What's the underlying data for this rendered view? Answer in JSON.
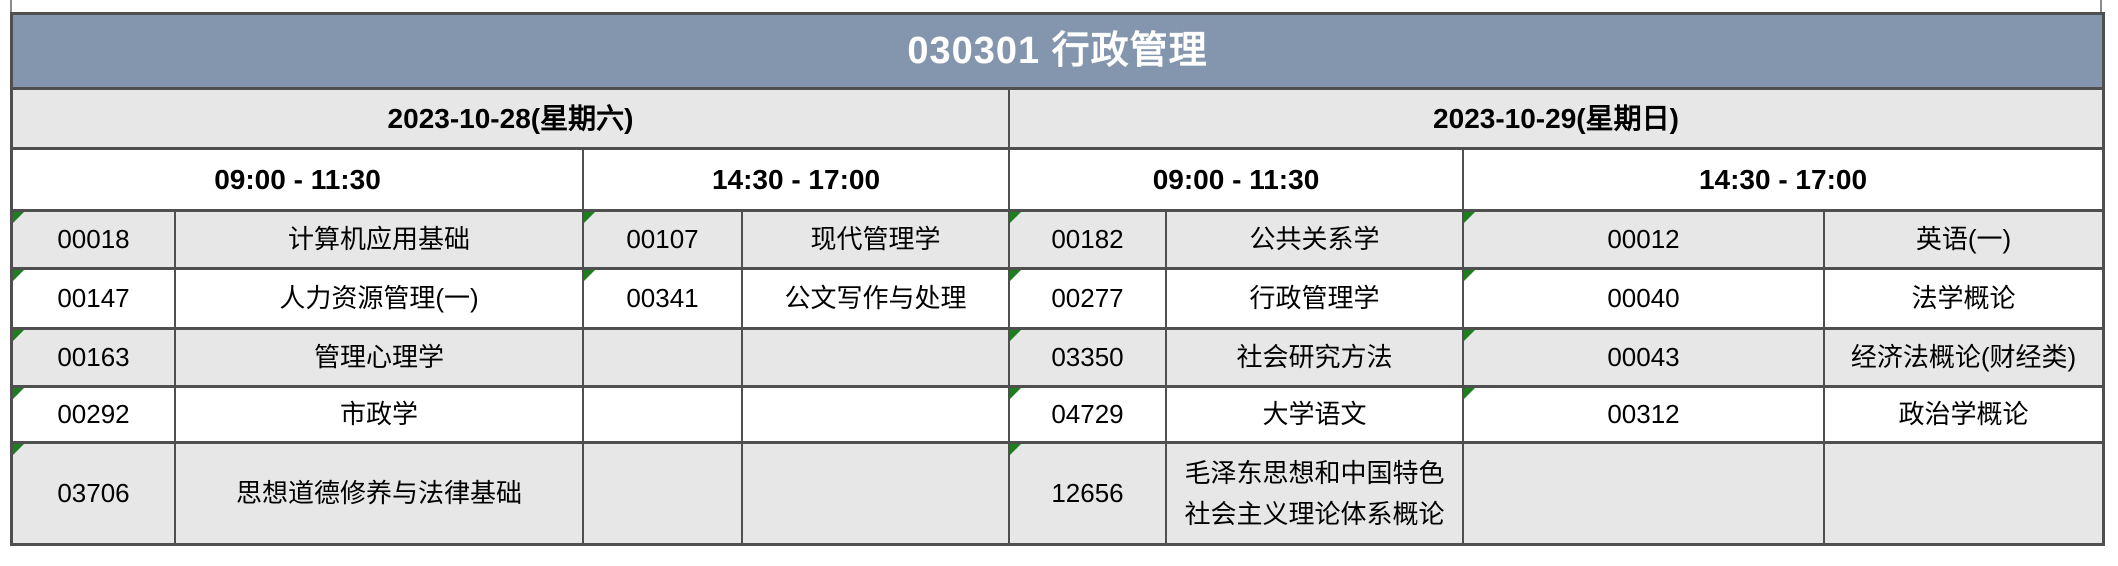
{
  "title": "030301 行政管理",
  "colors": {
    "title_bg": "#8496ad",
    "title_text": "#ffffff",
    "shaded_row_bg": "#e7e7e7",
    "plain_row_bg": "#ffffff",
    "grid_border": "#4f4f4f",
    "comment_marker": "#1e7d1e"
  },
  "days": [
    {
      "date": "2023-10-28(星期六)"
    },
    {
      "date": "2023-10-29(星期日)"
    }
  ],
  "sessions": [
    "09:00 - 11:30",
    "14:30 - 17:00",
    "09:00 - 11:30",
    "14:30 - 17:00"
  ],
  "rows": [
    [
      {
        "code": "00018",
        "course": "计算机应用基础"
      },
      {
        "code": "00107",
        "course": "现代管理学"
      },
      {
        "code": "00182",
        "course": "公共关系学"
      },
      {
        "code": "00012",
        "course": "英语(一)"
      }
    ],
    [
      {
        "code": "00147",
        "course": "人力资源管理(一)"
      },
      {
        "code": "00341",
        "course": "公文写作与处理"
      },
      {
        "code": "00277",
        "course": "行政管理学"
      },
      {
        "code": "00040",
        "course": "法学概论"
      }
    ],
    [
      {
        "code": "00163",
        "course": "管理心理学"
      },
      {
        "code": "",
        "course": ""
      },
      {
        "code": "03350",
        "course": "社会研究方法"
      },
      {
        "code": "00043",
        "course": "经济法概论(财经类)"
      }
    ],
    [
      {
        "code": "00292",
        "course": "市政学"
      },
      {
        "code": "",
        "course": ""
      },
      {
        "code": "04729",
        "course": "大学语文"
      },
      {
        "code": "00312",
        "course": "政治学概论"
      }
    ],
    [
      {
        "code": "03706",
        "course": "思想道德修养与法律基础"
      },
      {
        "code": "",
        "course": ""
      },
      {
        "code": "12656",
        "course": "毛泽东思想和中国特色社会主义理论体系概论"
      },
      {
        "code": "",
        "course": ""
      }
    ]
  ]
}
